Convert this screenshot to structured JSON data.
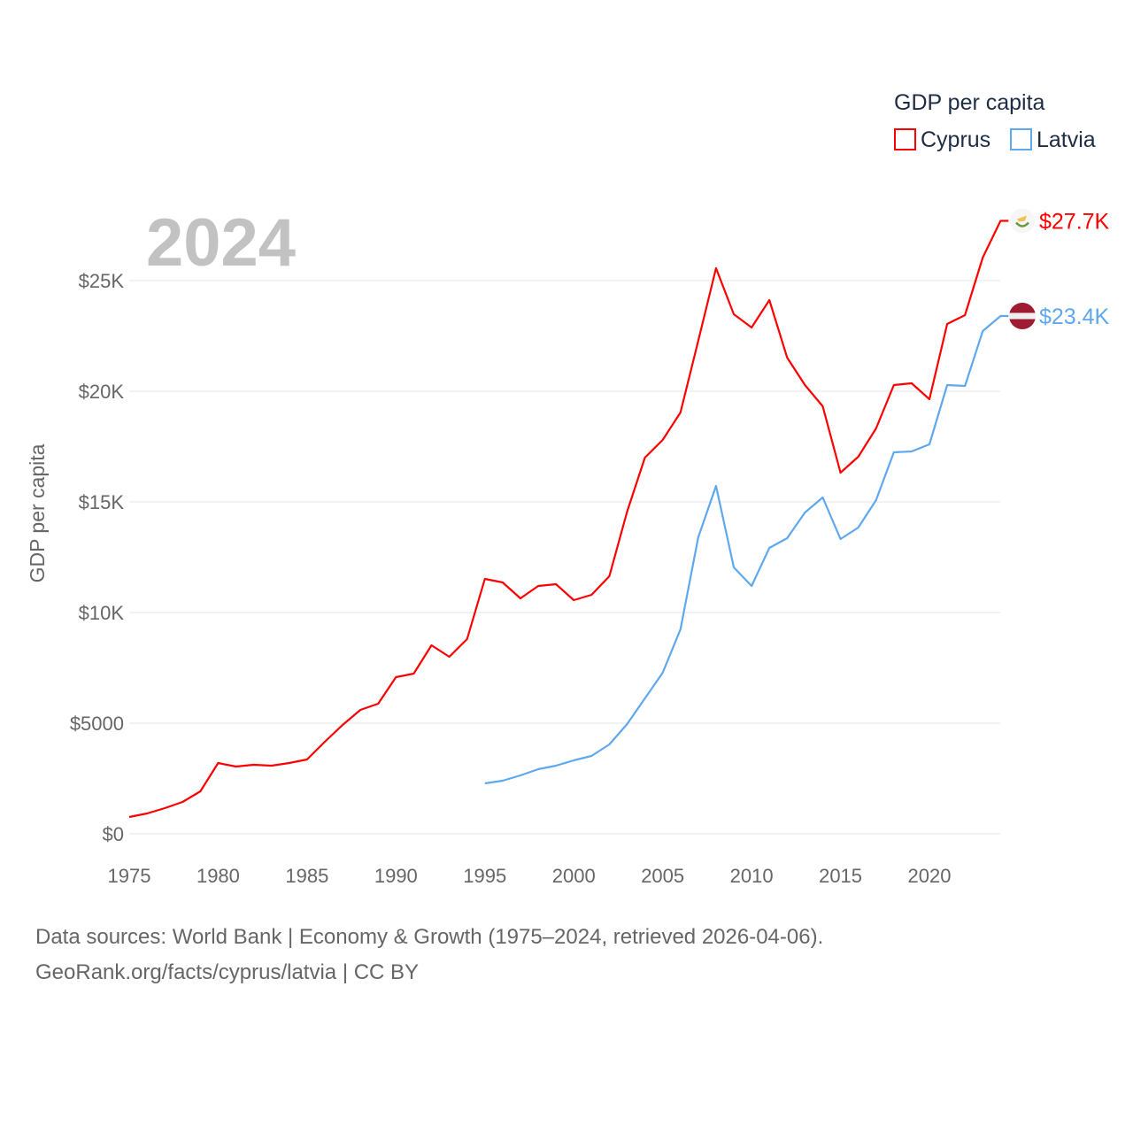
{
  "chart_data": {
    "type": "line",
    "title": "GDP per capita",
    "year_label": "2024",
    "ylabel": "GDP per capita",
    "xlabel": "",
    "xlim": [
      1975,
      2024
    ],
    "ylim": [
      0,
      28000
    ],
    "x_ticks": [
      1975,
      1980,
      1985,
      1990,
      1995,
      2000,
      2005,
      2010,
      2015,
      2020
    ],
    "x_tick_labels": [
      "1975",
      "1980",
      "1985",
      "1990",
      "1995",
      "2000",
      "2005",
      "2010",
      "2015",
      "2020"
    ],
    "y_ticks": [
      0,
      5000,
      10000,
      15000,
      20000,
      25000
    ],
    "y_tick_labels": [
      "$0",
      "$5000",
      "$10K",
      "$15K",
      "$20K",
      "$25K"
    ],
    "grid": true,
    "legend_placement": "top-right",
    "series": [
      {
        "name": "Cyprus",
        "color": "#ff0000",
        "flag": "cyprus-flag",
        "end_label": "$27.7K",
        "start_year": 1975,
        "values": [
          760,
          920,
          1160,
          1440,
          1920,
          3200,
          3040,
          3120,
          3080,
          3200,
          3360,
          4160,
          4920,
          5600,
          5880,
          7080,
          7240,
          8520,
          8000,
          8800,
          11520,
          11360,
          10640,
          11200,
          11280,
          10560,
          10800,
          11640,
          14560,
          17000,
          17800,
          19040,
          22280,
          25560,
          23480,
          22880,
          24120,
          21520,
          20280,
          19320,
          16320,
          17040,
          18320,
          20280,
          20360,
          19640,
          23040,
          23440,
          26040,
          27700
        ]
      },
      {
        "name": "Latvia",
        "color": "#5fa8ee",
        "flag": "latvia-flag",
        "end_label": "$23.4K",
        "start_year": 1995,
        "values": [
          2280,
          2400,
          2640,
          2920,
          3080,
          3320,
          3520,
          4040,
          4960,
          6120,
          7280,
          9240,
          13400,
          15720,
          12040,
          11200,
          12920,
          13360,
          14520,
          15200,
          13320,
          13840,
          15080,
          17240,
          17280,
          17600,
          20280,
          20240,
          22720,
          23400
        ]
      }
    ]
  },
  "footer": {
    "line1": "Data sources: World Bank | Economy & Growth (1975–2024, retrieved 2026-04-06).",
    "line2": "GeoRank.org/facts/cyprus/latvia | CC BY"
  }
}
